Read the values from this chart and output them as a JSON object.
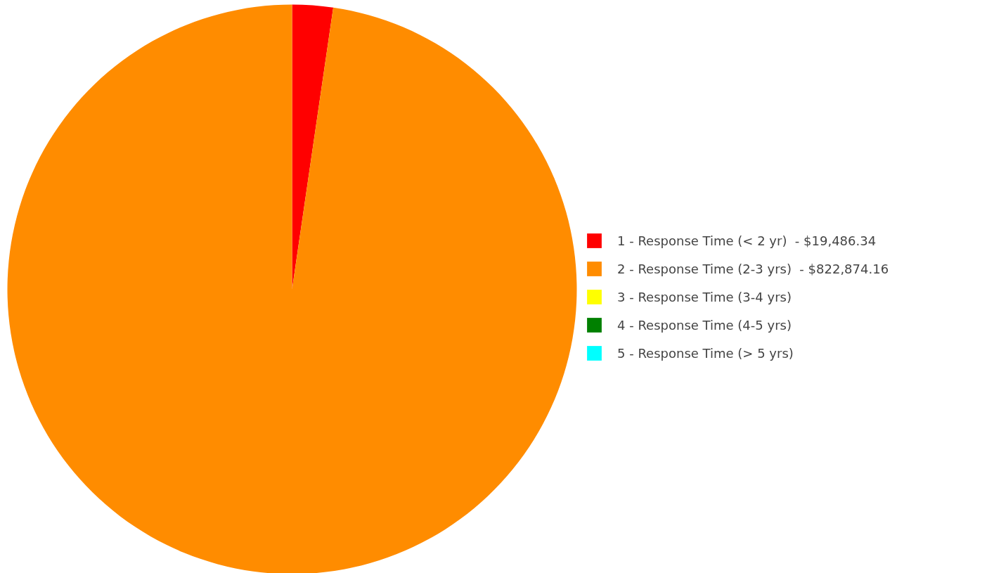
{
  "chart_data": {
    "type": "pie",
    "categories": [
      "1 - Response Time (< 2 yr)  - $19,486.34",
      "2 - Response Time (2-3 yrs)  - $822,874.16",
      "3 - Response Time (3-4 yrs)",
      "4 - Response Time (4-5 yrs)",
      "5 - Response Time (> 5 yrs)"
    ],
    "values": [
      2.31,
      97.69,
      0,
      0,
      0
    ],
    "colors": [
      "#ff0000",
      "#ff8c00",
      "#ffff00",
      "#008000",
      "#00ffff"
    ],
    "legend": "right"
  }
}
